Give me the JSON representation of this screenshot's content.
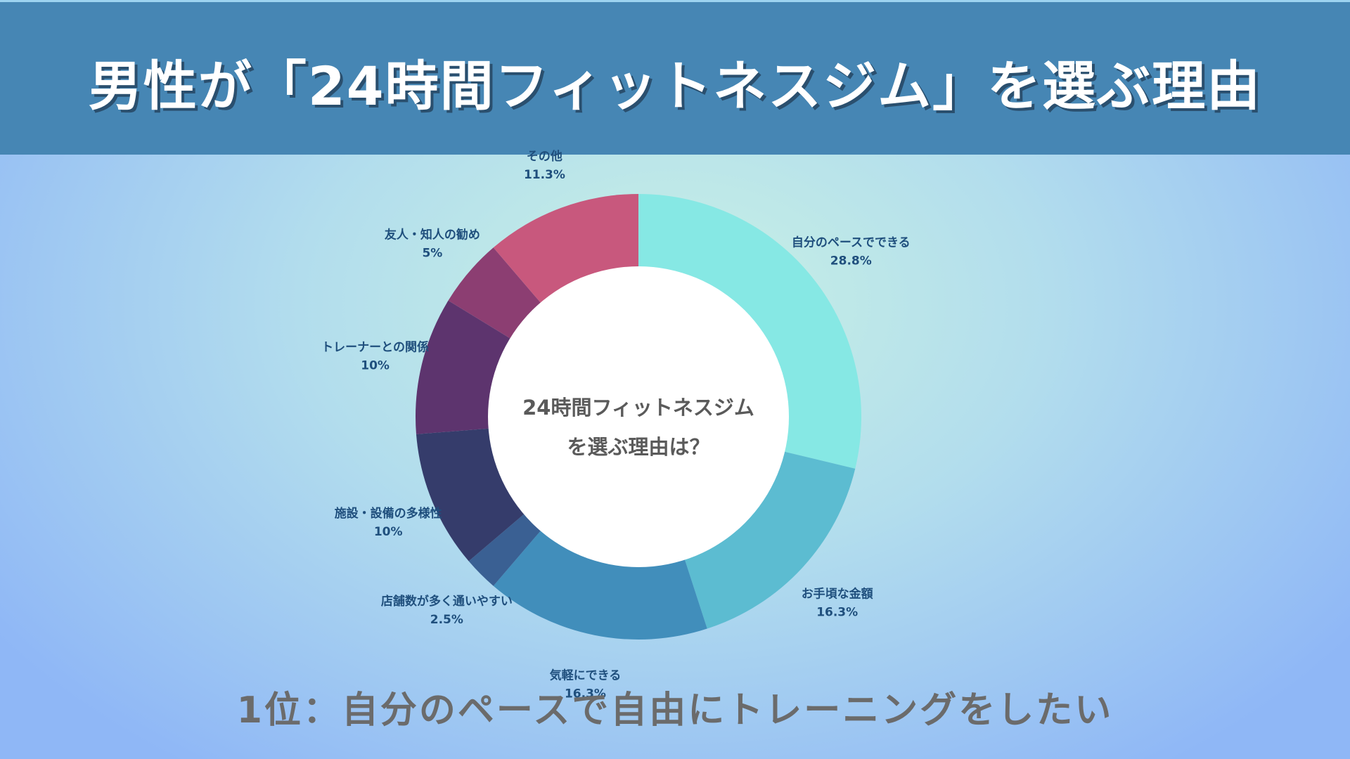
{
  "header": {
    "title": "男性が「24時間フィットネスジム」を選ぶ理由"
  },
  "chart_data": {
    "type": "pie",
    "title": "男性が「24時間フィットネスジム」を選ぶ理由",
    "center_label": [
      "24時間フィットネスジム",
      "を選ぶ理由は？"
    ],
    "legend": "labels-outside",
    "slices": [
      {
        "label": "自分のペースでできる",
        "value": 28.8,
        "display": "28.8%",
        "color": "#86e8e4"
      },
      {
        "label": "お手頃な金額",
        "value": 16.3,
        "display": "16.3%",
        "color": "#5cbcd1"
      },
      {
        "label": "気軽にできる",
        "value": 16.3,
        "display": "16.3%",
        "color": "#418ebb"
      },
      {
        "label": "店舗数が多く通いやすい",
        "value": 2.5,
        "display": "2.5%",
        "color": "#3a6093"
      },
      {
        "label": "施設・設備の多様性",
        "value": 10,
        "display": "10%",
        "color": "#353c6b"
      },
      {
        "label": "トレーナーとの関係",
        "value": 10,
        "display": "10%",
        "color": "#5d346e"
      },
      {
        "label": "友人・知人の勧め",
        "value": 5,
        "display": "5%",
        "color": "#8c3e72"
      },
      {
        "label": "その他",
        "value": 11.3,
        "display": "11.3%",
        "color": "#c8587d"
      }
    ]
  },
  "footer": {
    "text": "1位：自分のペースで自由にトレーニングをしたい"
  }
}
